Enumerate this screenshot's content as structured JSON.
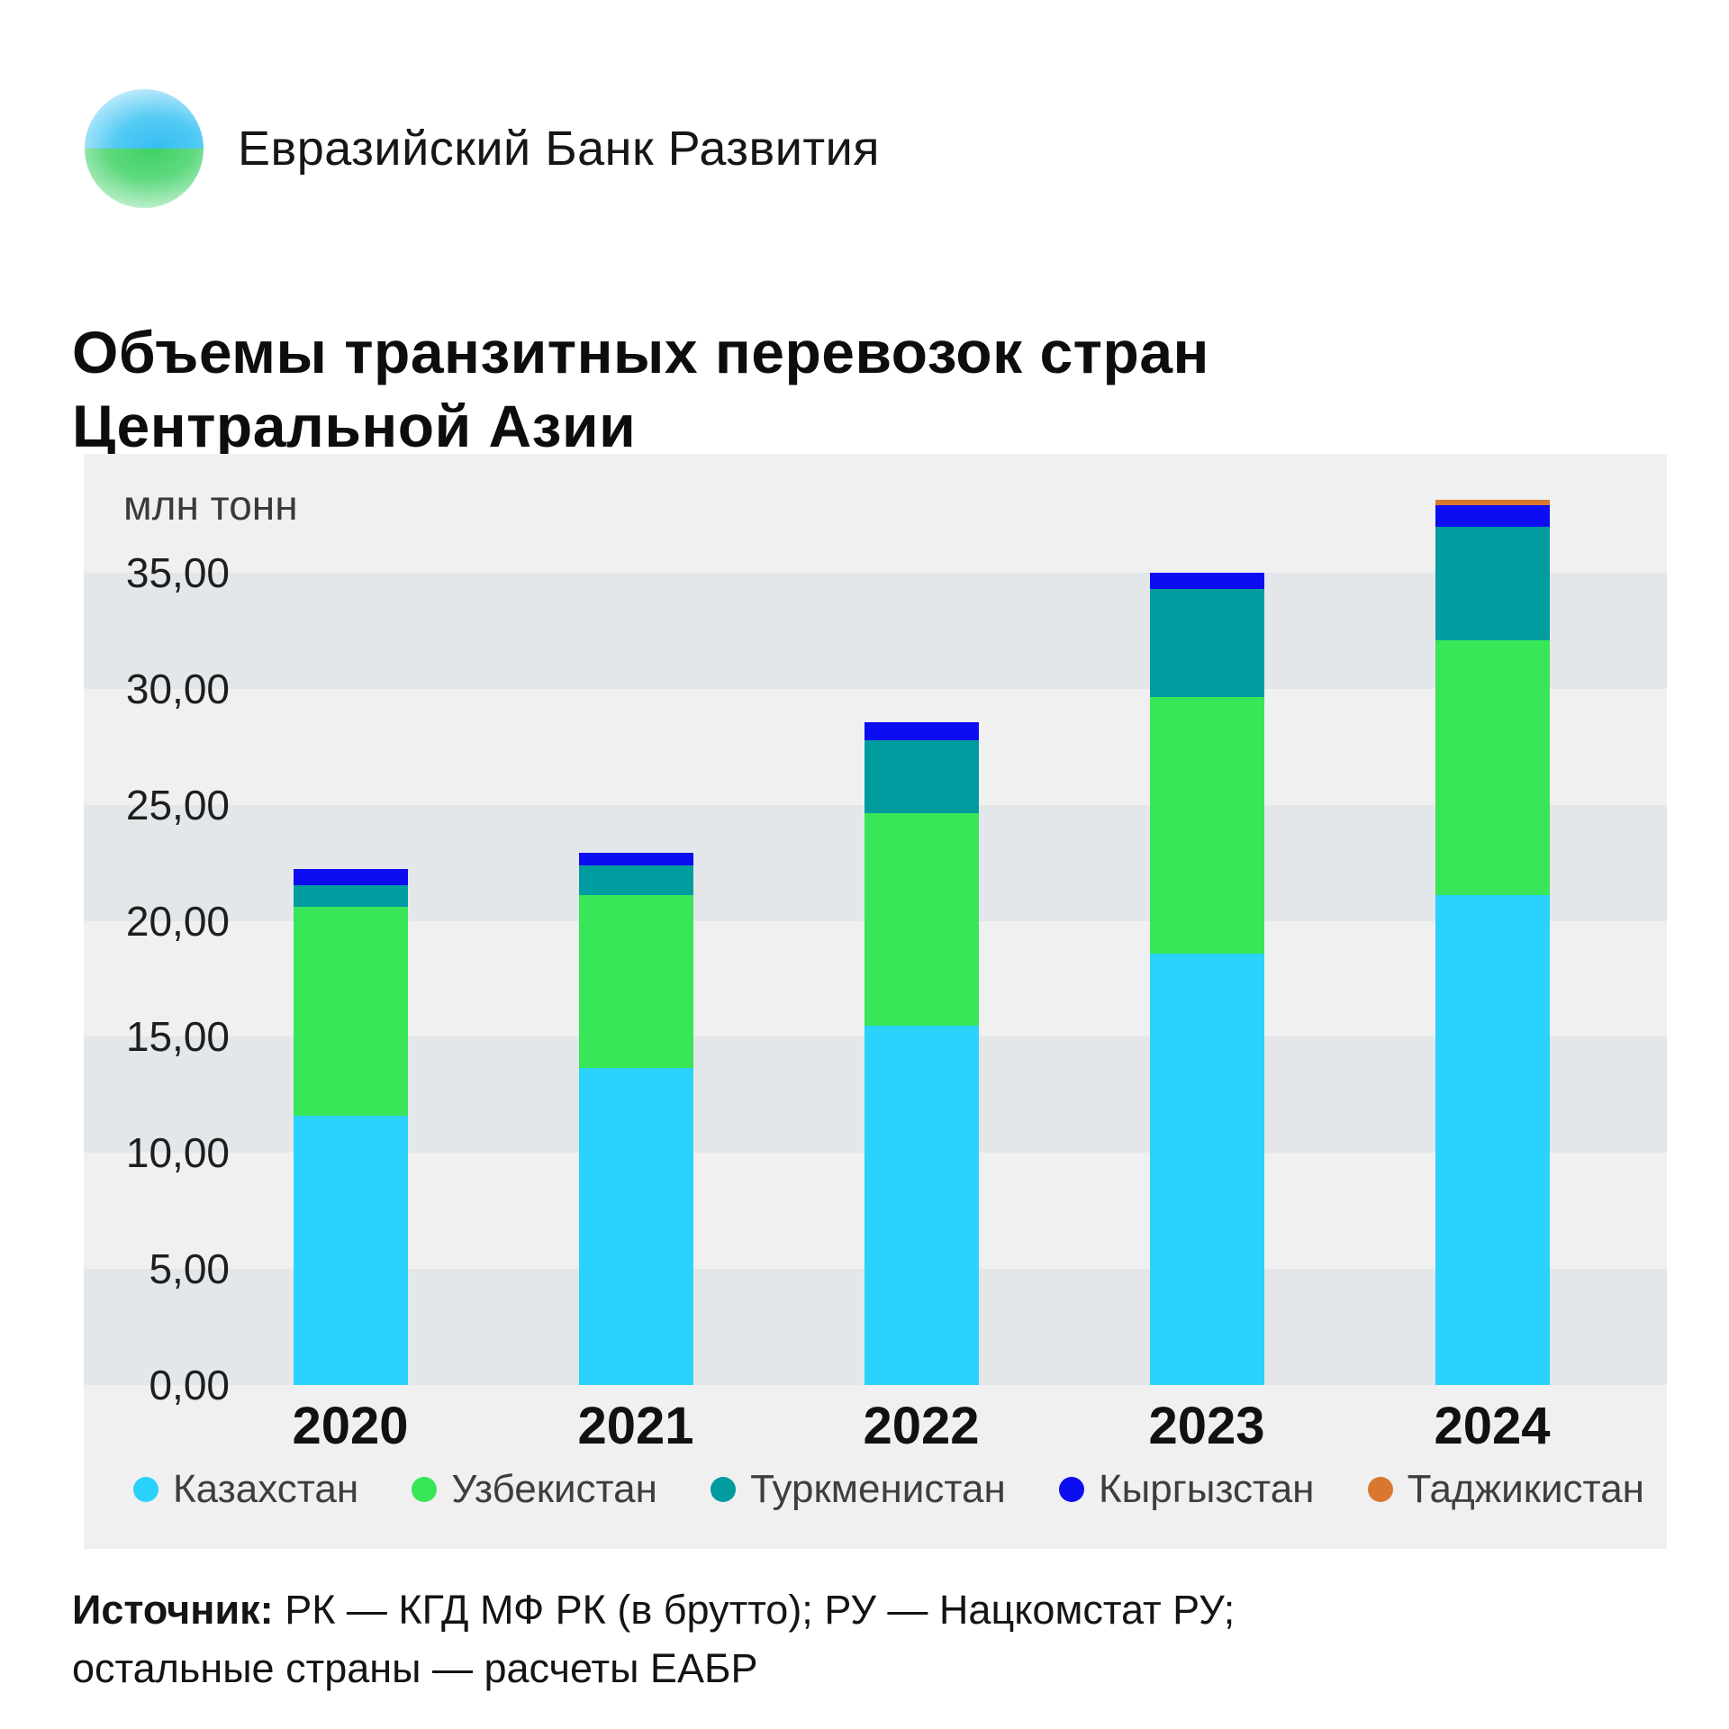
{
  "header": {
    "bank_name": "Евразийский Банк Развития",
    "logo_colors": {
      "blue": "#35BEF2",
      "green": "#3ED163"
    }
  },
  "title": {
    "line1": "Объемы транзитных перевозок стран",
    "line2": "Центральной Азии"
  },
  "chart_data": {
    "type": "bar",
    "stacked": true,
    "title": "Объемы транзитных перевозок стран Центральной Азии",
    "unit_label": "млн тонн",
    "xlabel": "",
    "ylabel": "млн тонн",
    "categories": [
      "2020",
      "2021",
      "2022",
      "2023",
      "2024"
    ],
    "series": [
      {
        "name": "Казахстан",
        "slug": "kazakhstan",
        "color": "#2BD2FC",
        "values": [
          11.6,
          13.65,
          15.5,
          18.6,
          21.1
        ]
      },
      {
        "name": "Узбекистан",
        "slug": "uzbekistan",
        "color": "#38E658",
        "values": [
          9.0,
          7.45,
          9.15,
          11.05,
          11.0
        ]
      },
      {
        "name": "Туркменистан",
        "slug": "turkmenistan",
        "color": "#009CA0",
        "values": [
          0.95,
          1.3,
          3.15,
          4.65,
          4.9
        ]
      },
      {
        "name": "Кыргызстан",
        "slug": "kyrgyzstan",
        "color": "#0D0DF1",
        "values": [
          0.7,
          0.55,
          0.75,
          0.7,
          0.9
        ]
      },
      {
        "name": "Таджикистан",
        "slug": "tajikistan",
        "color": "#D9772E",
        "values": [
          0,
          0,
          0,
          0,
          0.25
        ]
      }
    ],
    "yticks": [
      "0,00",
      "5,00",
      "10,00",
      "15,00",
      "20,00",
      "25,00",
      "30,00",
      "35,00"
    ],
    "ytick_values": [
      0,
      5,
      10,
      15,
      20,
      25,
      30,
      35
    ],
    "ylim": [
      0,
      40
    ],
    "grid": "horizontal-bands",
    "band_colors": {
      "light": "#F0F0F1",
      "dark": "#E4E7E9"
    },
    "legend_position": "bottom"
  },
  "source": {
    "label": "Источник:",
    "line1_rest": "РК — КГД МФ РК (в брутто); РУ — Нацкомстат РУ;",
    "line2": "остальные страны — расчеты ЕАБР"
  }
}
